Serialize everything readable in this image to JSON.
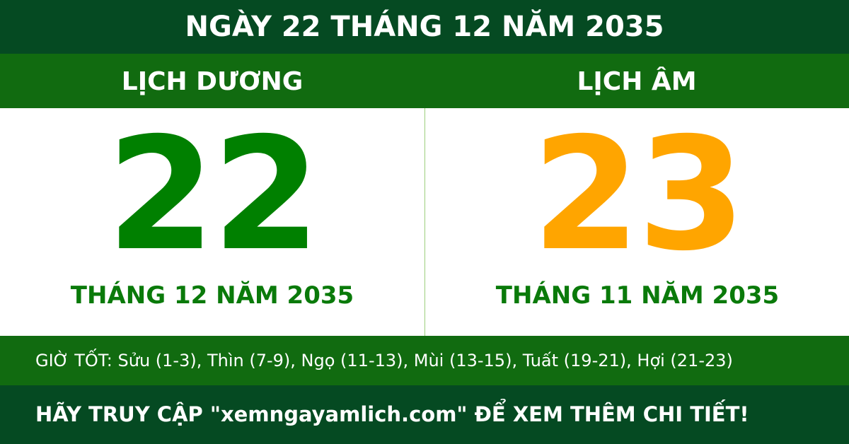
{
  "title": "NGÀY 22 THÁNG 12 NĂM 2035",
  "solar": {
    "heading": "LỊCH DƯƠNG",
    "day": "22",
    "month_year": "THÁNG 12 NĂM 2035"
  },
  "lunar": {
    "heading": "LỊCH ÂM",
    "day": "23",
    "month_year": "THÁNG 11 NĂM 2035"
  },
  "good_hours": "GIỜ TỐT: Sửu (1-3), Thìn (7-9), Ngọ (11-13), Mùi (13-15), Tuất (19-21), Hợi (21-23)",
  "footer": "HÃY TRUY CẬP \"xemngayamlich.com\" ĐỂ XEM THÊM CHI TIẾT!",
  "colors": {
    "dark_green": "#054a22",
    "band_green": "#116b10",
    "solar_green": "#008000",
    "lunar_orange": "#ffa500"
  }
}
